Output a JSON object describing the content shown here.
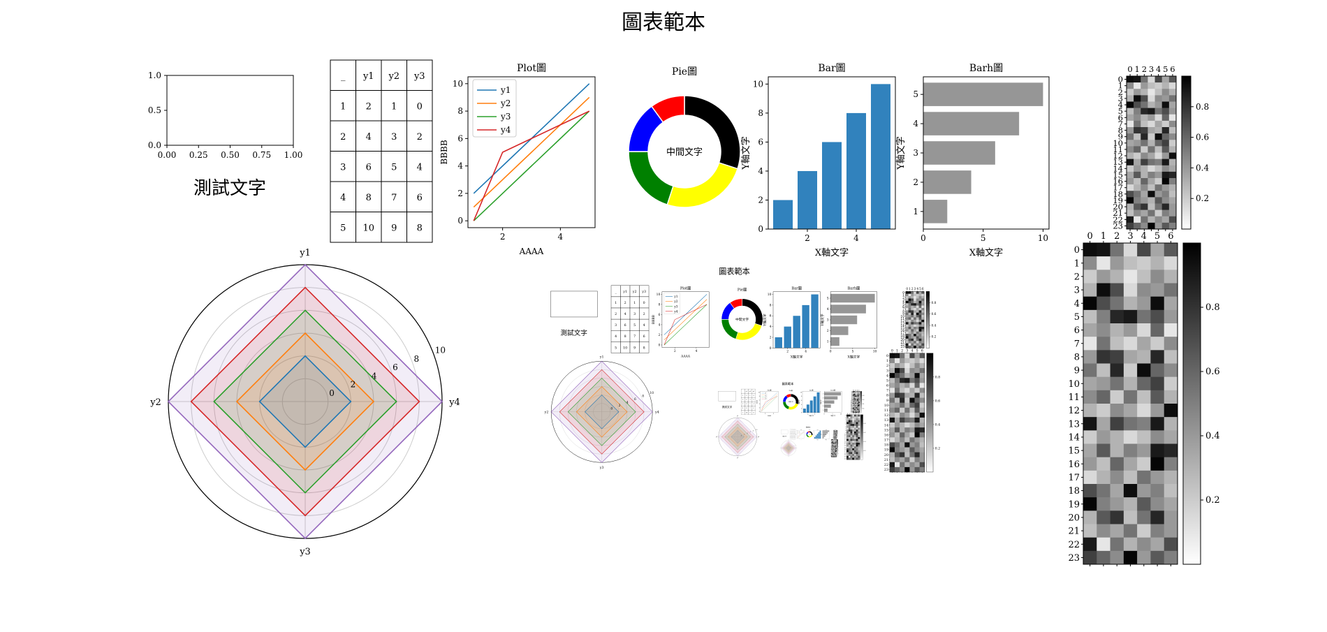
{
  "title": "圖表範本",
  "empty_axes": {
    "text": "測試文字",
    "xticks": [
      "0.00",
      "0.25",
      "0.50",
      "0.75",
      "1.00"
    ],
    "yticks": [
      "0.0",
      "0.5",
      "1.0"
    ]
  },
  "table": {
    "header": [
      "_",
      "y1",
      "y2",
      "y3"
    ],
    "rows": [
      [
        "1",
        "2",
        "1",
        "0"
      ],
      [
        "2",
        "4",
        "3",
        "2"
      ],
      [
        "3",
        "6",
        "5",
        "4"
      ],
      [
        "4",
        "8",
        "7",
        "6"
      ],
      [
        "5",
        "10",
        "9",
        "8"
      ]
    ]
  },
  "colors": {
    "y1": "#1f77b4",
    "y2": "#ff7f0e",
    "y3": "#2ca02c",
    "y4": "#d62728",
    "y5": "#9467bd",
    "bar": "#3182bd",
    "barh": "#969696"
  },
  "chart_data": [
    {
      "type": "line",
      "title": "Plot圖",
      "xlabel": "AAAA",
      "ylabel": "BBBB",
      "x": [
        1,
        2,
        3,
        4,
        5
      ],
      "xlim": [
        0.8,
        5.2
      ],
      "ylim": [
        -0.5,
        10.5
      ],
      "xticks": [
        2,
        4
      ],
      "yticks": [
        0,
        2,
        4,
        6,
        8,
        10
      ],
      "legend": "upper-left",
      "series": [
        {
          "name": "y1",
          "values": [
            2,
            4,
            6,
            8,
            10
          ]
        },
        {
          "name": "y2",
          "values": [
            1,
            3,
            5,
            7,
            9
          ]
        },
        {
          "name": "y3",
          "values": [
            0,
            2,
            4,
            6,
            8
          ]
        },
        {
          "name": "y4",
          "values": [
            0,
            5,
            6,
            7,
            8
          ]
        }
      ]
    },
    {
      "type": "pie",
      "title": "Pie圖",
      "center_text": "中間文字",
      "values": [
        30,
        25,
        20,
        15,
        10
      ],
      "colors": [
        "#000000",
        "#ffff00",
        "#008000",
        "#0000ff",
        "#ff0000"
      ]
    },
    {
      "type": "bar",
      "title": "Bar圖",
      "xlabel": "X軸文字",
      "ylabel": "Y軸文字",
      "x": [
        1,
        2,
        3,
        4,
        5
      ],
      "values": [
        2,
        4,
        6,
        8,
        10
      ],
      "xlim": [
        0.4,
        5.6
      ],
      "ylim": [
        0,
        10.5
      ],
      "xticks": [
        2,
        4
      ],
      "yticks": [
        0,
        2,
        4,
        6,
        8,
        10
      ]
    },
    {
      "type": "barh",
      "title": "Barh圖",
      "xlabel": "X軸文字",
      "ylabel": "Y軸文字",
      "y": [
        1,
        2,
        3,
        4,
        5
      ],
      "values": [
        2,
        4,
        6,
        8,
        10
      ],
      "xlim": [
        0,
        10.5
      ],
      "ylim": [
        0.4,
        5.6
      ],
      "xticks": [
        0,
        5,
        10
      ],
      "yticks": [
        1,
        2,
        3,
        4,
        5
      ]
    },
    {
      "type": "radar",
      "axes": [
        "y1",
        "y4",
        "y3",
        "y2"
      ],
      "rlim": [
        -2,
        10
      ],
      "rticks": [
        0,
        2,
        4,
        6,
        8,
        10
      ],
      "series": [
        {
          "values": [
            2,
            2,
            2,
            2
          ]
        },
        {
          "values": [
            4,
            4,
            4,
            4
          ]
        },
        {
          "values": [
            6,
            6,
            6,
            6
          ]
        },
        {
          "values": [
            8,
            8,
            8,
            8
          ]
        },
        {
          "values": [
            10,
            10,
            10,
            10
          ]
        }
      ]
    },
    {
      "type": "heatmap",
      "rows": 24,
      "cols": 7,
      "colormap": "Greys",
      "colorbar_ticks": [
        "0.2",
        "0.4",
        "0.6",
        "0.8"
      ],
      "values": [
        [
          0.95,
          0.92,
          0.55,
          0.15,
          0.72,
          0.35,
          0.65
        ],
        [
          0.45,
          0.1,
          0.4,
          0.25,
          0.2,
          0.3,
          0.15
        ],
        [
          0.2,
          0.4,
          0.3,
          0.1,
          0.25,
          0.45,
          0.3
        ],
        [
          0.3,
          0.95,
          0.7,
          0.15,
          0.45,
          0.4,
          0.55
        ],
        [
          0.98,
          0.7,
          0.55,
          0.3,
          0.4,
          0.95,
          0.35
        ],
        [
          0.25,
          0.5,
          0.85,
          0.9,
          0.55,
          0.7,
          0.4
        ],
        [
          0.35,
          0.45,
          0.3,
          0.4,
          0.15,
          0.6,
          0.1
        ],
        [
          0.1,
          0.55,
          0.25,
          0.15,
          0.35,
          0.2,
          0.45
        ],
        [
          0.4,
          0.8,
          0.75,
          0.35,
          0.3,
          0.85,
          0.25
        ],
        [
          0.55,
          0.25,
          0.85,
          0.2,
          0.95,
          0.6,
          0.45
        ],
        [
          0.35,
          0.4,
          0.55,
          0.3,
          0.6,
          0.75,
          0.2
        ],
        [
          0.45,
          0.6,
          0.2,
          0.55,
          0.25,
          0.65,
          0.3
        ],
        [
          0.3,
          0.2,
          0.45,
          0.35,
          0.15,
          0.4,
          0.95
        ],
        [
          0.92,
          0.35,
          0.75,
          0.55,
          0.5,
          0.9,
          0.3
        ],
        [
          0.2,
          0.4,
          0.3,
          0.15,
          0.25,
          0.45,
          0.35
        ],
        [
          0.35,
          0.65,
          0.3,
          0.5,
          0.4,
          0.9,
          0.85
        ],
        [
          0.4,
          0.25,
          0.6,
          0.35,
          0.2,
          0.98,
          0.5
        ],
        [
          0.15,
          0.3,
          0.45,
          0.25,
          0.55,
          0.4,
          0.3
        ],
        [
          0.7,
          0.55,
          0.35,
          0.95,
          0.4,
          0.5,
          0.25
        ],
        [
          0.98,
          0.5,
          0.4,
          0.3,
          0.65,
          0.45,
          0.35
        ],
        [
          0.3,
          0.65,
          0.8,
          0.25,
          0.55,
          0.85,
          0.4
        ],
        [
          0.25,
          0.45,
          0.35,
          0.55,
          0.2,
          0.5,
          0.4
        ],
        [
          0.9,
          0.1,
          0.55,
          0.3,
          0.45,
          0.35,
          0.7
        ],
        [
          0.75,
          0.6,
          0.45,
          0.98,
          0.4,
          0.65,
          0.5
        ]
      ]
    }
  ]
}
